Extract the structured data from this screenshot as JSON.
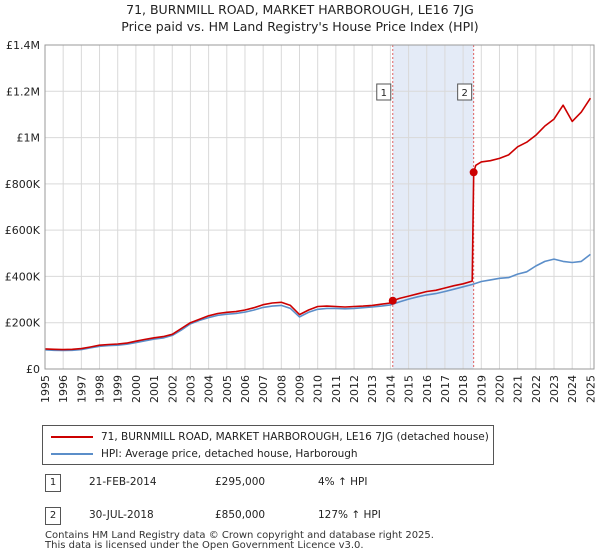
{
  "chart_data": {
    "type": "line",
    "title": "71, BURNMILL ROAD, MARKET HARBOROUGH, LE16 7JG",
    "subtitle": "Price paid vs. HM Land Registry's House Price Index (HPI)",
    "xlabel": "",
    "ylabel": "",
    "xlim": [
      1995,
      2025.2
    ],
    "ylim": [
      0,
      1400000
    ],
    "x_ticks": [
      "1995",
      "1996",
      "1997",
      "1998",
      "1999",
      "2000",
      "2001",
      "2002",
      "2003",
      "2004",
      "2005",
      "2006",
      "2007",
      "2008",
      "2009",
      "2010",
      "2011",
      "2012",
      "2013",
      "2014",
      "2015",
      "2016",
      "2017",
      "2018",
      "2019",
      "2020",
      "2021",
      "2022",
      "2023",
      "2024",
      "2025"
    ],
    "y_ticks": [
      {
        "value": 0,
        "label": "£0"
      },
      {
        "value": 200000,
        "label": "£200K"
      },
      {
        "value": 400000,
        "label": "£400K"
      },
      {
        "value": 600000,
        "label": "£600K"
      },
      {
        "value": 800000,
        "label": "£800K"
      },
      {
        "value": 1000000,
        "label": "£1M"
      },
      {
        "value": 1200000,
        "label": "£1.2M"
      },
      {
        "value": 1400000,
        "label": "£1.4M"
      }
    ],
    "grid": true,
    "shaded_region": {
      "x_start": 2014.13,
      "x_end": 2018.58
    },
    "series": [
      {
        "name": "71, BURNMILL ROAD, MARKET HARBOROUGH, LE16 7JG (detached house)",
        "color": "#cc0000",
        "x": [
          1995.0,
          1995.5,
          1996.0,
          1996.5,
          1997.0,
          1997.5,
          1998.0,
          1998.5,
          1999.0,
          1999.5,
          2000.0,
          2000.5,
          2001.0,
          2001.5,
          2002.0,
          2002.5,
          2003.0,
          2003.5,
          2004.0,
          2004.5,
          2005.0,
          2005.5,
          2006.0,
          2006.5,
          2007.0,
          2007.5,
          2008.0,
          2008.5,
          2009.0,
          2009.5,
          2010.0,
          2010.5,
          2011.0,
          2011.5,
          2012.0,
          2012.5,
          2013.0,
          2013.5,
          2014.0,
          2014.13,
          2014.5,
          2015.0,
          2015.5,
          2016.0,
          2016.5,
          2017.0,
          2017.5,
          2018.0,
          2018.5,
          2018.58,
          2018.7,
          2019.0,
          2019.5,
          2020.0,
          2020.5,
          2021.0,
          2021.5,
          2022.0,
          2022.5,
          2023.0,
          2023.5,
          2024.0,
          2024.5,
          2025.0
        ],
        "values": [
          87000,
          85000,
          84000,
          85000,
          88000,
          95000,
          103000,
          106000,
          108000,
          112000,
          120000,
          128000,
          135000,
          140000,
          150000,
          175000,
          200000,
          215000,
          230000,
          240000,
          245000,
          248000,
          255000,
          265000,
          278000,
          285000,
          288000,
          275000,
          235000,
          255000,
          270000,
          272000,
          270000,
          268000,
          270000,
          272000,
          275000,
          280000,
          285000,
          295000,
          305000,
          315000,
          325000,
          335000,
          340000,
          350000,
          360000,
          368000,
          380000,
          850000,
          880000,
          895000,
          900000,
          910000,
          925000,
          960000,
          980000,
          1010000,
          1050000,
          1080000,
          1140000,
          1070000,
          1110000,
          1170000
        ]
      },
      {
        "name": "HPI: Average price, detached house, Harborough",
        "color": "#5b8ec9",
        "x": [
          1995.0,
          1995.5,
          1996.0,
          1996.5,
          1997.0,
          1997.5,
          1998.0,
          1998.5,
          1999.0,
          1999.5,
          2000.0,
          2000.5,
          2001.0,
          2001.5,
          2002.0,
          2002.5,
          2003.0,
          2003.5,
          2004.0,
          2004.5,
          2005.0,
          2005.5,
          2006.0,
          2006.5,
          2007.0,
          2007.5,
          2008.0,
          2008.5,
          2009.0,
          2009.5,
          2010.0,
          2010.5,
          2011.0,
          2011.5,
          2012.0,
          2012.5,
          2013.0,
          2013.5,
          2014.0,
          2014.5,
          2015.0,
          2015.5,
          2016.0,
          2016.5,
          2017.0,
          2017.5,
          2018.0,
          2018.5,
          2019.0,
          2019.5,
          2020.0,
          2020.5,
          2021.0,
          2021.5,
          2022.0,
          2022.5,
          2023.0,
          2023.5,
          2024.0,
          2024.5,
          2025.0
        ],
        "values": [
          83000,
          81000,
          80000,
          81000,
          84000,
          91000,
          98000,
          101000,
          103000,
          107000,
          114000,
          122000,
          129000,
          134000,
          145000,
          168000,
          195000,
          210000,
          222000,
          232000,
          237000,
          240000,
          246000,
          255000,
          266000,
          272000,
          275000,
          262000,
          225000,
          245000,
          258000,
          262000,
          262000,
          260000,
          262000,
          265000,
          268000,
          272000,
          277000,
          290000,
          302000,
          312000,
          320000,
          326000,
          335000,
          345000,
          355000,
          365000,
          378000,
          385000,
          392000,
          395000,
          410000,
          420000,
          445000,
          465000,
          475000,
          465000,
          460000,
          465000,
          495000
        ]
      }
    ],
    "annotations": [
      {
        "label": "1",
        "x": 2014.13,
        "value": 295000
      },
      {
        "label": "2",
        "x": 2018.58,
        "value": 850000
      }
    ]
  },
  "legend": {
    "items": [
      {
        "label": "71, BURNMILL ROAD, MARKET HARBOROUGH, LE16 7JG (detached house)",
        "color": "#cc0000"
      },
      {
        "label": "HPI: Average price, detached house, Harborough",
        "color": "#5b8ec9"
      }
    ]
  },
  "sales": [
    {
      "number": "1",
      "date": "21-FEB-2014",
      "price": "£295,000",
      "hpi": "4% ↑ HPI"
    },
    {
      "number": "2",
      "date": "30-JUL-2018",
      "price": "£850,000",
      "hpi": "127% ↑ HPI"
    }
  ],
  "footer": {
    "line1": "Contains HM Land Registry data © Crown copyright and database right 2025.",
    "line2": "This data is licensed under the Open Government Licence v3.0."
  }
}
